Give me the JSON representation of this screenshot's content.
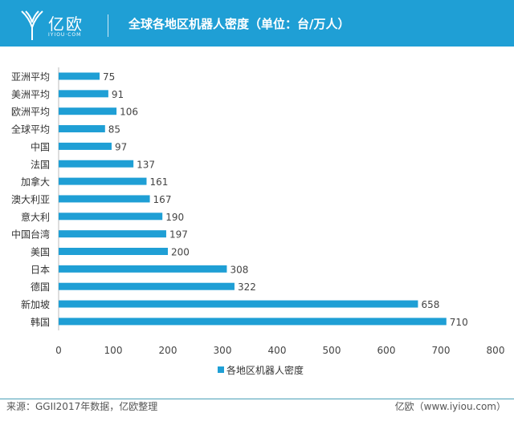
{
  "header": {
    "logo": "亿欧",
    "logo_sub": "IYIOU·COM",
    "title": "全球各地区机器人密度（单位：台/万人）"
  },
  "colors": {
    "header": "#1f9fd5",
    "bar": "#1f9fd5"
  },
  "chart_data": {
    "type": "bar",
    "orientation": "horizontal",
    "title": "全球各地区机器人密度（单位：台/万人）",
    "categories": [
      "亚洲平均",
      "美洲平均",
      "欧洲平均",
      "全球平均",
      "中国",
      "法国",
      "加拿大",
      "澳大利亚",
      "意大利",
      "中国台湾",
      "美国",
      "日本",
      "德国",
      "新加坡",
      "韩国"
    ],
    "series": [
      {
        "name": "各地区机器人密度",
        "values": [
          75,
          91,
          106,
          85,
          97,
          137,
          161,
          167,
          190,
          197,
          200,
          308,
          322,
          658,
          710
        ]
      }
    ],
    "xlim": [
      0,
      800
    ],
    "xticks": [
      0,
      100,
      200,
      300,
      400,
      500,
      600,
      700,
      800
    ],
    "grid": false,
    "legend": "bottom",
    "data_labels": true
  },
  "footer": {
    "source": "来源：GGII2017年数据，亿欧整理",
    "site": "亿欧（www.iyiou.com）"
  }
}
